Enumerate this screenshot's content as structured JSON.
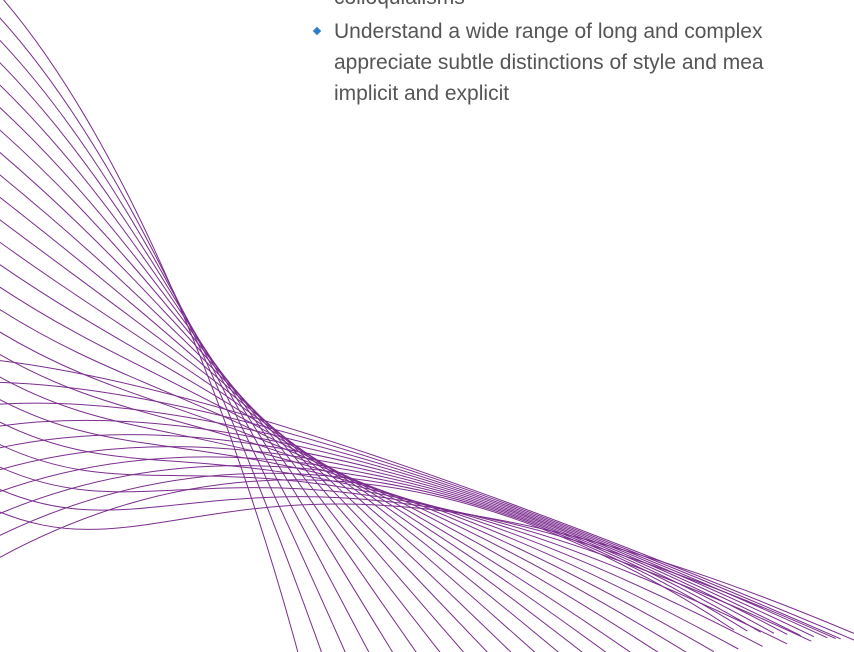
{
  "bullets": [
    {
      "lines": [
        "colloquialisms"
      ],
      "marker": false
    },
    {
      "lines": [
        "Understand a wide range of long and complex",
        "appreciate subtle distinctions of style and mea",
        "implicit and explicit"
      ],
      "marker": true
    }
  ],
  "colors": {
    "text": "#555555",
    "bullet": "#2e7ec9",
    "decor_lines": "#7b2d8e",
    "background": "#ffffff"
  },
  "decor": {
    "icon": "purple-swoosh-lines",
    "line_count": 24
  }
}
